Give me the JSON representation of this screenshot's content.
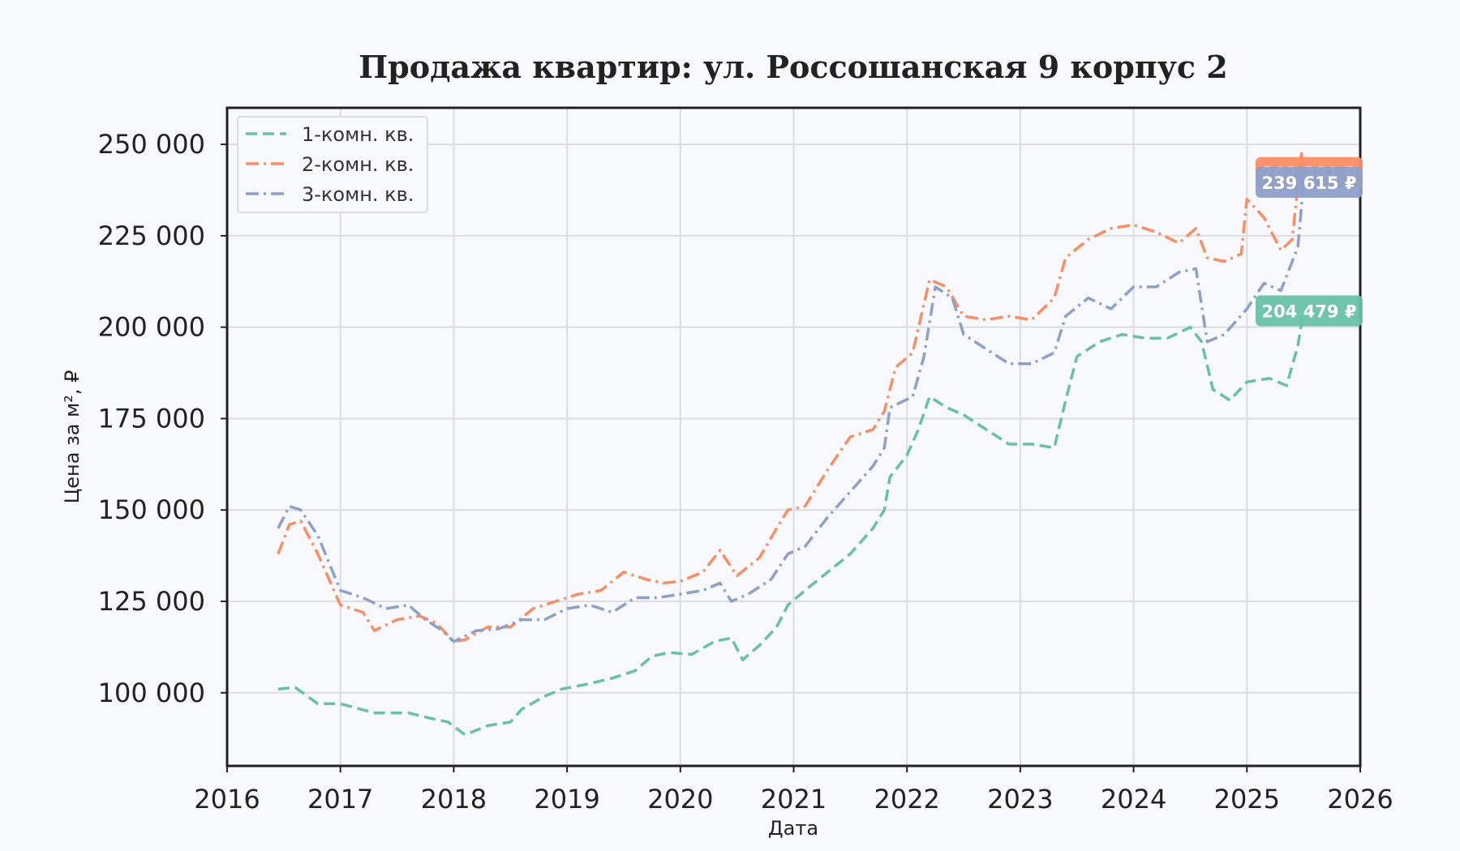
{
  "chart_data": {
    "type": "line",
    "title": "Продажа квартир: ул. Россошанская 9 корпус 2",
    "xlabel": "Дата",
    "ylabel": "Цена за м², ₽",
    "xlim": [
      2016,
      2026
    ],
    "ylim": [
      80000,
      260000
    ],
    "x_ticks": [
      "2016",
      "2017",
      "2018",
      "2019",
      "2020",
      "2021",
      "2022",
      "2023",
      "2024",
      "2025",
      "2026"
    ],
    "y_ticks": [
      "100 000",
      "125 000",
      "150 000",
      "175 000",
      "200 000",
      "225 000",
      "250 000"
    ],
    "y_tick_values": [
      100000,
      125000,
      150000,
      175000,
      200000,
      225000,
      250000
    ],
    "grid": true,
    "legend_position": "top-left",
    "series": [
      {
        "name": "1-комн. кв.",
        "color": "#66c2a5",
        "dash": "dashed",
        "last_value_label": "204 479 ₽",
        "points": [
          [
            2016.45,
            101000
          ],
          [
            2016.6,
            101500
          ],
          [
            2016.8,
            97000
          ],
          [
            2017.0,
            97000
          ],
          [
            2017.3,
            94500
          ],
          [
            2017.6,
            94500
          ],
          [
            2017.8,
            93000
          ],
          [
            2017.95,
            92000
          ],
          [
            2018.1,
            88500
          ],
          [
            2018.3,
            91000
          ],
          [
            2018.5,
            92000
          ],
          [
            2018.6,
            95500
          ],
          [
            2018.8,
            99000
          ],
          [
            2018.95,
            101000
          ],
          [
            2019.2,
            102500
          ],
          [
            2019.4,
            104000
          ],
          [
            2019.6,
            106000
          ],
          [
            2019.75,
            110000
          ],
          [
            2019.9,
            111000
          ],
          [
            2020.1,
            110500
          ],
          [
            2020.3,
            114000
          ],
          [
            2020.45,
            115000
          ],
          [
            2020.55,
            109000
          ],
          [
            2020.7,
            113000
          ],
          [
            2020.85,
            118000
          ],
          [
            2020.95,
            124000
          ],
          [
            2021.1,
            128000
          ],
          [
            2021.3,
            133000
          ],
          [
            2021.5,
            138000
          ],
          [
            2021.7,
            145000
          ],
          [
            2021.8,
            150000
          ],
          [
            2021.85,
            159000
          ],
          [
            2022.0,
            165000
          ],
          [
            2022.1,
            172000
          ],
          [
            2022.2,
            181000
          ],
          [
            2022.35,
            178000
          ],
          [
            2022.5,
            176000
          ],
          [
            2022.7,
            172000
          ],
          [
            2022.9,
            168000
          ],
          [
            2023.1,
            168000
          ],
          [
            2023.3,
            167000
          ],
          [
            2023.4,
            180000
          ],
          [
            2023.5,
            192000
          ],
          [
            2023.7,
            196000
          ],
          [
            2023.9,
            198000
          ],
          [
            2024.1,
            197000
          ],
          [
            2024.3,
            197000
          ],
          [
            2024.5,
            200000
          ],
          [
            2024.6,
            196000
          ],
          [
            2024.7,
            183000
          ],
          [
            2024.85,
            180000
          ],
          [
            2025.0,
            185000
          ],
          [
            2025.2,
            186000
          ],
          [
            2025.35,
            184000
          ],
          [
            2025.45,
            195000
          ],
          [
            2025.5,
            204479
          ]
        ]
      },
      {
        "name": "2-комн. кв.",
        "color": "#fc8d62",
        "dash": "dashdot",
        "last_value_label": "242 281 ₽",
        "points": [
          [
            2016.45,
            138000
          ],
          [
            2016.55,
            146000
          ],
          [
            2016.65,
            147000
          ],
          [
            2016.8,
            138000
          ],
          [
            2017.0,
            124000
          ],
          [
            2017.2,
            122000
          ],
          [
            2017.3,
            117000
          ],
          [
            2017.5,
            120000
          ],
          [
            2017.7,
            121000
          ],
          [
            2017.85,
            119000
          ],
          [
            2018.0,
            114000
          ],
          [
            2018.1,
            114500
          ],
          [
            2018.3,
            118000
          ],
          [
            2018.5,
            118000
          ],
          [
            2018.7,
            123000
          ],
          [
            2018.9,
            125000
          ],
          [
            2019.1,
            127000
          ],
          [
            2019.3,
            128000
          ],
          [
            2019.5,
            133000
          ],
          [
            2019.7,
            131000
          ],
          [
            2019.85,
            130000
          ],
          [
            2020.0,
            130500
          ],
          [
            2020.2,
            133000
          ],
          [
            2020.35,
            139000
          ],
          [
            2020.5,
            132000
          ],
          [
            2020.7,
            137000
          ],
          [
            2020.85,
            145000
          ],
          [
            2020.95,
            150000
          ],
          [
            2021.1,
            151000
          ],
          [
            2021.3,
            161000
          ],
          [
            2021.5,
            170000
          ],
          [
            2021.7,
            172000
          ],
          [
            2021.8,
            177000
          ],
          [
            2021.9,
            189000
          ],
          [
            2022.05,
            193000
          ],
          [
            2022.2,
            213000
          ],
          [
            2022.35,
            211000
          ],
          [
            2022.5,
            203000
          ],
          [
            2022.7,
            202000
          ],
          [
            2022.9,
            203000
          ],
          [
            2023.1,
            202000
          ],
          [
            2023.3,
            208000
          ],
          [
            2023.4,
            219000
          ],
          [
            2023.6,
            224000
          ],
          [
            2023.8,
            227000
          ],
          [
            2024.0,
            228000
          ],
          [
            2024.2,
            226000
          ],
          [
            2024.4,
            223000
          ],
          [
            2024.55,
            227000
          ],
          [
            2024.65,
            219000
          ],
          [
            2024.8,
            218000
          ],
          [
            2024.95,
            220000
          ],
          [
            2025.0,
            235000
          ],
          [
            2025.15,
            230000
          ],
          [
            2025.3,
            221000
          ],
          [
            2025.4,
            224000
          ],
          [
            2025.48,
            248000
          ],
          [
            2025.5,
            242281
          ]
        ]
      },
      {
        "name": "3-комн. кв.",
        "color": "#8da0cb",
        "dash": "dashdot",
        "last_value_label": "239 615 ₽",
        "points": [
          [
            2016.45,
            145000
          ],
          [
            2016.55,
            151000
          ],
          [
            2016.65,
            150000
          ],
          [
            2016.8,
            143000
          ],
          [
            2017.0,
            128000
          ],
          [
            2017.2,
            126000
          ],
          [
            2017.4,
            123000
          ],
          [
            2017.6,
            124000
          ],
          [
            2017.75,
            120000
          ],
          [
            2017.9,
            117000
          ],
          [
            2018.0,
            114000
          ],
          [
            2018.2,
            117000
          ],
          [
            2018.4,
            117500
          ],
          [
            2018.6,
            120000
          ],
          [
            2018.8,
            120000
          ],
          [
            2019.0,
            123000
          ],
          [
            2019.2,
            124000
          ],
          [
            2019.4,
            122000
          ],
          [
            2019.6,
            126000
          ],
          [
            2019.8,
            126000
          ],
          [
            2020.0,
            127000
          ],
          [
            2020.2,
            128000
          ],
          [
            2020.35,
            130000
          ],
          [
            2020.45,
            125000
          ],
          [
            2020.6,
            127000
          ],
          [
            2020.8,
            131000
          ],
          [
            2020.95,
            138000
          ],
          [
            2021.1,
            140000
          ],
          [
            2021.3,
            148000
          ],
          [
            2021.5,
            155000
          ],
          [
            2021.7,
            162000
          ],
          [
            2021.8,
            167000
          ],
          [
            2021.85,
            178000
          ],
          [
            2022.05,
            181000
          ],
          [
            2022.15,
            192000
          ],
          [
            2022.25,
            211000
          ],
          [
            2022.4,
            208000
          ],
          [
            2022.5,
            198000
          ],
          [
            2022.7,
            194000
          ],
          [
            2022.9,
            190000
          ],
          [
            2023.1,
            190000
          ],
          [
            2023.3,
            193000
          ],
          [
            2023.4,
            203000
          ],
          [
            2023.6,
            208000
          ],
          [
            2023.8,
            205000
          ],
          [
            2024.0,
            211000
          ],
          [
            2024.2,
            211000
          ],
          [
            2024.4,
            215000
          ],
          [
            2024.55,
            216000
          ],
          [
            2024.65,
            196000
          ],
          [
            2024.8,
            198000
          ],
          [
            2025.0,
            205000
          ],
          [
            2025.15,
            212000
          ],
          [
            2025.3,
            210000
          ],
          [
            2025.45,
            222000
          ],
          [
            2025.5,
            239615
          ]
        ]
      }
    ]
  }
}
